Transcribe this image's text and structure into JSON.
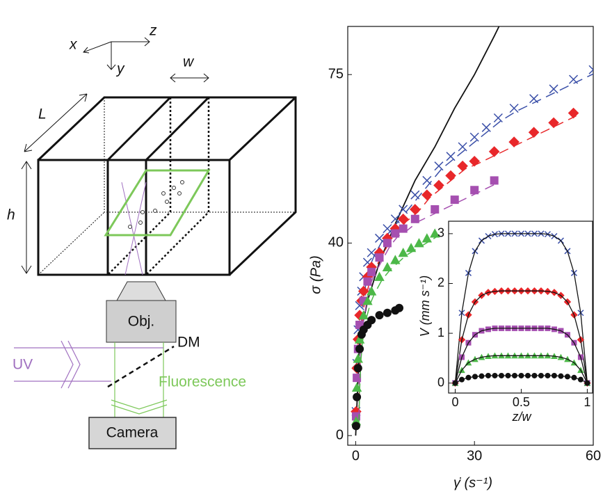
{
  "diagram": {
    "axis_x": "x",
    "axis_y": "y",
    "axis_z": "z",
    "width": "w",
    "length": "L",
    "height": "h",
    "objective": "Obj.",
    "mirror": "DM",
    "uv": "UV",
    "fluorescence": "Fluorescence",
    "camera": "Camera"
  },
  "chart_data": [
    {
      "type": "scatter",
      "xlabel": "γ̇ (s⁻¹)",
      "ylabel": "σ (Pa)",
      "xlim": [
        -2,
        60
      ],
      "ylim": [
        -2,
        85
      ],
      "xticks": [
        0,
        30,
        60
      ],
      "yticks": [
        0,
        40,
        75
      ],
      "series": [
        {
          "color": "#111111",
          "marker": "none",
          "line": "solid",
          "x": [
            0,
            1,
            3,
            6,
            10,
            15,
            20,
            25,
            30,
            35,
            38
          ],
          "values": [
            0,
            20,
            28,
            36,
            44,
            53,
            60,
            68,
            75,
            83,
            88
          ]
        },
        {
          "color": "#3a4fa8",
          "marker": "cross",
          "line": "dashed",
          "x": [
            0.1,
            0.3,
            0.6,
            1,
            1.5,
            2,
            3,
            4,
            6,
            8,
            10,
            12,
            15,
            18,
            21,
            24,
            27,
            30,
            33,
            36,
            40,
            45,
            50,
            55,
            60
          ],
          "values": [
            5,
            15,
            22,
            27,
            30,
            33,
            36,
            38,
            41,
            43,
            45,
            47,
            50,
            53,
            56,
            58,
            60,
            62,
            64,
            66,
            68,
            70,
            72,
            74,
            76
          ]
        },
        {
          "color": "#e8272a",
          "marker": "diamond",
          "line": "dashed",
          "x": [
            0.1,
            0.3,
            0.6,
            1,
            1.5,
            2,
            3,
            4,
            6,
            8,
            10,
            12,
            15,
            18,
            21,
            24,
            27,
            30,
            35,
            40,
            45,
            50,
            55
          ],
          "values": [
            5,
            14,
            20,
            25,
            28,
            30,
            33,
            35,
            38,
            41,
            43,
            45,
            47,
            50,
            52,
            54,
            56,
            57,
            59,
            61,
            63,
            65,
            67
          ]
        },
        {
          "color": "#a54fb0",
          "marker": "square",
          "line": "dashed",
          "x": [
            0.1,
            0.3,
            0.6,
            1,
            2,
            3,
            4,
            6,
            8,
            10,
            12,
            15,
            20,
            25,
            30,
            35
          ],
          "values": [
            4,
            12,
            18,
            23,
            28,
            32,
            34,
            37,
            40,
            42,
            43,
            45,
            47,
            49,
            51,
            53
          ]
        },
        {
          "color": "#4cb848",
          "marker": "triangle",
          "line": "dashed",
          "x": [
            0.1,
            0.3,
            0.6,
            1,
            2,
            3,
            4,
            6,
            8,
            10,
            12,
            14,
            16,
            18,
            20
          ],
          "values": [
            3,
            10,
            16,
            20,
            25,
            28,
            30,
            33,
            35,
            36.5,
            38,
            39,
            40,
            41,
            42
          ]
        },
        {
          "color": "#111111",
          "marker": "circle",
          "line": "none",
          "x": [
            0.1,
            0.3,
            0.6,
            1,
            1.5,
            2,
            3,
            4,
            6,
            8,
            10,
            11
          ],
          "values": [
            2,
            8,
            14,
            18,
            21,
            22,
            23,
            24,
            25,
            25.5,
            26,
            26.5
          ]
        }
      ]
    },
    {
      "type": "scatter",
      "xlabel": "z/w",
      "ylabel": "V (mm s⁻¹)",
      "xlim": [
        -0.05,
        1.04
      ],
      "ylim": [
        -0.2,
        3.25
      ],
      "xticks": [
        0,
        0.5,
        1
      ],
      "yticks": [
        0,
        1,
        2,
        3
      ],
      "series": [
        {
          "color": "#3a4fa8",
          "marker": "cross",
          "line": "fit",
          "x": [
            0,
            0.05,
            0.1,
            0.15,
            0.2,
            0.25,
            0.3,
            0.35,
            0.4,
            0.45,
            0.5,
            0.55,
            0.6,
            0.65,
            0.7,
            0.75,
            0.8,
            0.85,
            0.9,
            0.95,
            1
          ],
          "values": [
            0,
            1.41,
            2.21,
            2.65,
            2.86,
            2.95,
            2.99,
            3,
            3,
            3,
            3,
            3,
            3,
            3,
            2.99,
            2.95,
            2.86,
            2.65,
            2.21,
            1.41,
            0
          ]
        },
        {
          "color": "#e8272a",
          "marker": "diamond",
          "line": "fit",
          "x": [
            0,
            0.05,
            0.1,
            0.15,
            0.2,
            0.25,
            0.3,
            0.35,
            0.4,
            0.45,
            0.5,
            0.55,
            0.6,
            0.65,
            0.7,
            0.75,
            0.8,
            0.85,
            0.9,
            0.95,
            1
          ],
          "values": [
            0,
            0.87,
            1.37,
            1.63,
            1.76,
            1.82,
            1.84,
            1.85,
            1.85,
            1.85,
            1.85,
            1.85,
            1.85,
            1.85,
            1.84,
            1.82,
            1.76,
            1.63,
            1.37,
            0.87,
            0
          ]
        },
        {
          "color": "#a54fb0",
          "marker": "square",
          "line": "fit",
          "x": [
            0,
            0.05,
            0.1,
            0.15,
            0.2,
            0.25,
            0.3,
            0.35,
            0.4,
            0.45,
            0.5,
            0.55,
            0.6,
            0.65,
            0.7,
            0.75,
            0.8,
            0.85,
            0.9,
            0.95,
            1
          ],
          "values": [
            0,
            0.52,
            0.81,
            0.97,
            1.05,
            1.08,
            1.1,
            1.1,
            1.1,
            1.1,
            1.1,
            1.1,
            1.1,
            1.1,
            1.1,
            1.08,
            1.05,
            0.97,
            0.81,
            0.52,
            0
          ]
        },
        {
          "color": "#4cb848",
          "marker": "triangle",
          "line": "fit",
          "x": [
            0,
            0.05,
            0.1,
            0.15,
            0.2,
            0.25,
            0.3,
            0.35,
            0.4,
            0.45,
            0.5,
            0.55,
            0.6,
            0.65,
            0.7,
            0.75,
            0.8,
            0.85,
            0.9,
            0.95,
            1
          ],
          "values": [
            0,
            0.26,
            0.41,
            0.48,
            0.52,
            0.54,
            0.55,
            0.55,
            0.55,
            0.55,
            0.55,
            0.55,
            0.55,
            0.55,
            0.55,
            0.54,
            0.52,
            0.48,
            0.41,
            0.26,
            0
          ]
        },
        {
          "color": "#111111",
          "marker": "circle",
          "line": "fit",
          "x": [
            0,
            0.05,
            0.1,
            0.15,
            0.2,
            0.25,
            0.3,
            0.35,
            0.4,
            0.45,
            0.5,
            0.55,
            0.6,
            0.65,
            0.7,
            0.75,
            0.8,
            0.85,
            0.9,
            0.95,
            1
          ],
          "values": [
            0,
            0.07,
            0.11,
            0.13,
            0.14,
            0.15,
            0.15,
            0.15,
            0.15,
            0.15,
            0.15,
            0.15,
            0.15,
            0.15,
            0.15,
            0.15,
            0.14,
            0.13,
            0.11,
            0.07,
            0
          ]
        }
      ]
    }
  ]
}
